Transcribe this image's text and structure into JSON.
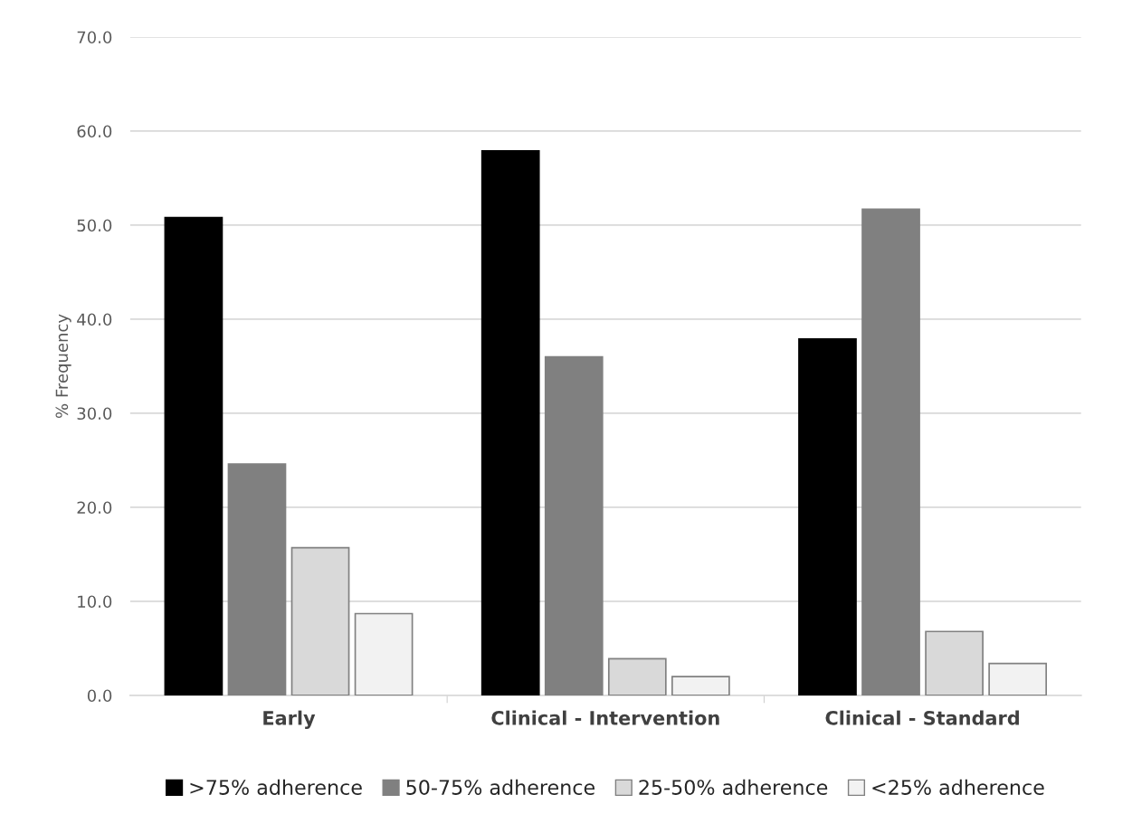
{
  "chart_data": {
    "type": "bar",
    "ylabel": "% Frequency",
    "categories": [
      "Early",
      "Clinical - Intervention",
      "Clinical - Standard"
    ],
    "series": [
      {
        "name": ">75% adherence",
        "color": "#000000",
        "values": [
          50.8,
          57.9,
          37.9
        ]
      },
      {
        "name": "50-75% adherence",
        "color": "#808080",
        "values": [
          24.6,
          36.0,
          51.7
        ]
      },
      {
        "name": "25-50% adherence",
        "color": "#d9d9d9",
        "values": [
          15.7,
          3.9,
          6.8
        ]
      },
      {
        "name": "<25% adherence",
        "color": "#f2f2f2",
        "values": [
          8.7,
          2.0,
          3.4
        ]
      }
    ],
    "ylim": [
      0,
      70
    ],
    "yticks": [
      {
        "value": 0,
        "label": "0.0"
      },
      {
        "value": 10,
        "label": "10.0"
      },
      {
        "value": 20,
        "label": "20.0"
      },
      {
        "value": 30,
        "label": "30.0"
      },
      {
        "value": 40,
        "label": "40.0"
      },
      {
        "value": 50,
        "label": "50.0"
      },
      {
        "value": 60,
        "label": "60.0"
      },
      {
        "value": 70,
        "label": "70.0"
      }
    ],
    "grid": "y",
    "legend": "bottom"
  }
}
